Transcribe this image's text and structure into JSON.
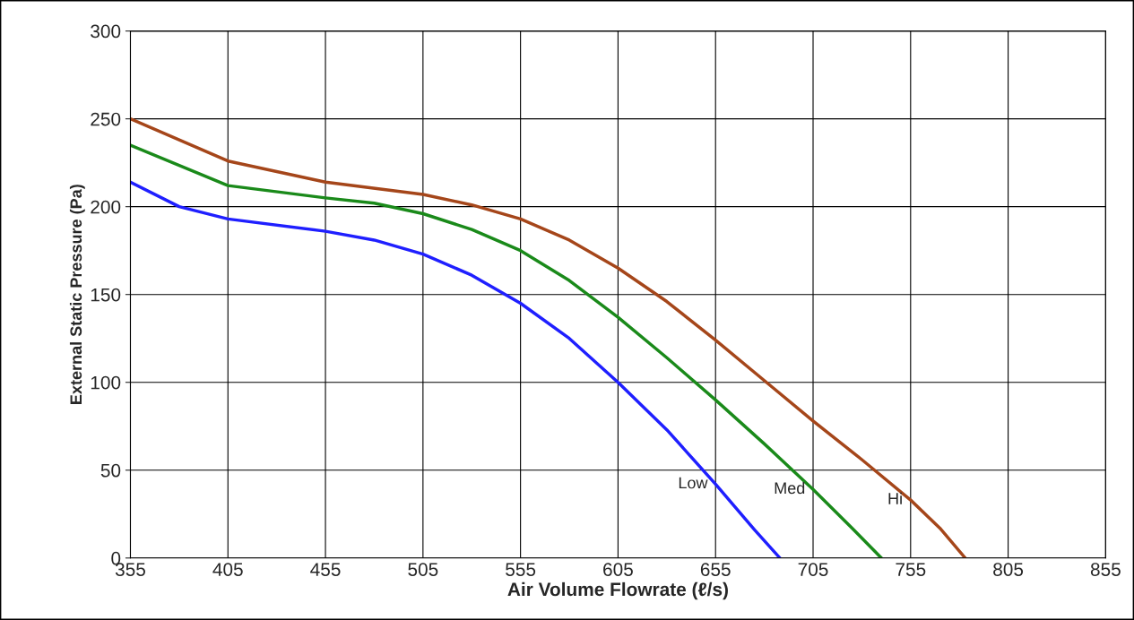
{
  "chart_data": {
    "type": "line",
    "xlabel": "Air Volume Flowrate (ℓ/s)",
    "ylabel": "External Static Pressure (Pa)",
    "xlim": [
      355,
      855
    ],
    "xticks": [
      355,
      405,
      455,
      505,
      555,
      605,
      655,
      705,
      755,
      805,
      855
    ],
    "ylim": [
      0,
      300
    ],
    "yticks": [
      0,
      50,
      100,
      150,
      200,
      250,
      300
    ],
    "grid": true,
    "legend": false,
    "series": [
      {
        "name": "Low",
        "color": "#1f1fff",
        "x": [
          355,
          380,
          405,
          455,
          480,
          505,
          530,
          555,
          580,
          605,
          630,
          655,
          675,
          688
        ],
        "values": [
          214,
          200,
          193,
          186,
          181,
          173,
          161,
          145,
          125,
          100,
          73,
          42,
          16,
          0
        ]
      },
      {
        "name": "Med",
        "color": "#1a8a1a",
        "x": [
          355,
          405,
          455,
          480,
          505,
          530,
          555,
          580,
          605,
          630,
          655,
          680,
          705,
          725,
          740
        ],
        "values": [
          235,
          212,
          205,
          202,
          196,
          187,
          175,
          158,
          137,
          114,
          90,
          65,
          39,
          17,
          0
        ]
      },
      {
        "name": "Hi",
        "color": "#a5461a",
        "x": [
          355,
          405,
          455,
          505,
          530,
          555,
          580,
          605,
          630,
          655,
          680,
          705,
          730,
          755,
          770,
          783
        ],
        "values": [
          250,
          226,
          214,
          207,
          201,
          193,
          181,
          165,
          146,
          124,
          101,
          78,
          56,
          33,
          17,
          0
        ]
      }
    ]
  }
}
